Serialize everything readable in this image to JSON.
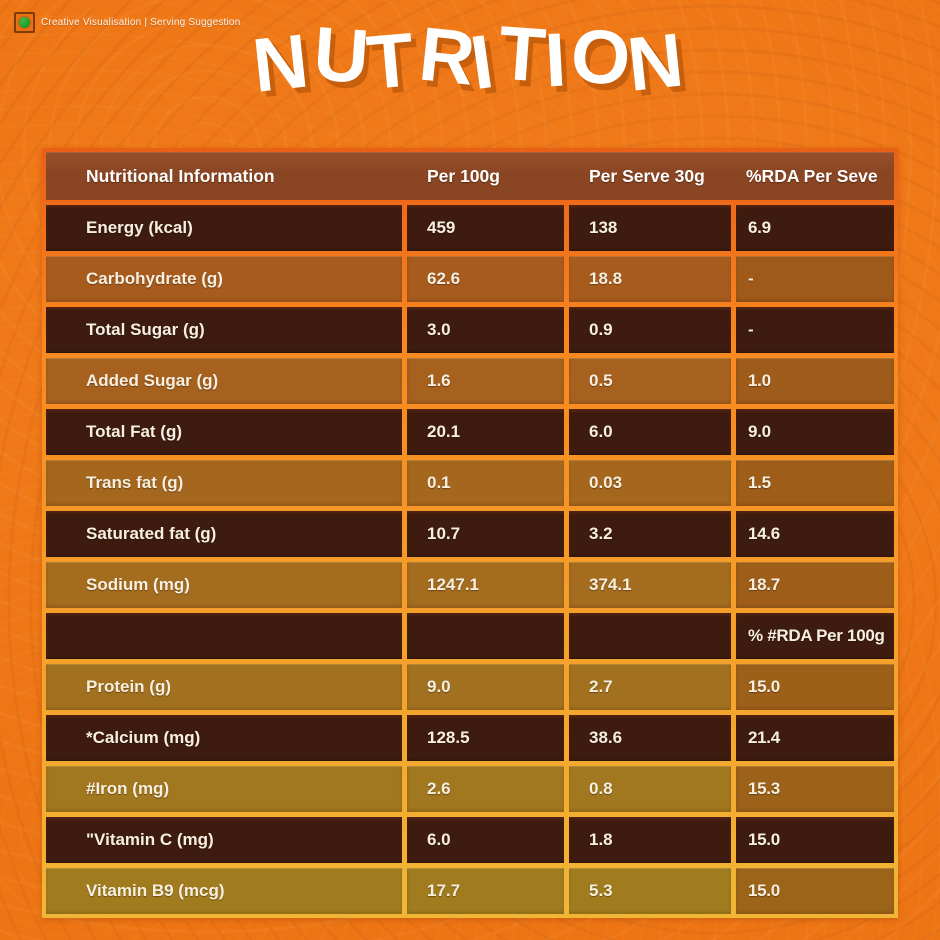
{
  "page": {
    "tagline": "Creative Visualisation | Serving Suggestion",
    "title": "NUTRITION"
  },
  "icons": {
    "veg_mark": "veg-symbol-green-dot-in-square"
  },
  "colors": {
    "background": "#ee7514",
    "grid_top": "#ea5f17",
    "grid_mid": "#f8881f",
    "grid_bottom": "#f2b636",
    "header_row": "#8a4522",
    "dark_row": "#3d1b0f",
    "light_row_top": "#a75c1e",
    "light_row_bottom": "#a07c1f",
    "light_row_last_col": "#9a5716",
    "cell_text": "#f7efe0",
    "header_text": "#ffffff",
    "title_color": "#ffffff",
    "tagline_text": "#ffffff",
    "veg_dot": "#1f9a2e"
  },
  "table": {
    "headers": [
      "Nutritional Information",
      "Per 100g",
      "Per Serve 30g",
      "%RDA Per Seve"
    ],
    "rows": [
      {
        "label": "Energy (kcal)",
        "per_100g": "459",
        "per_serve_30g": "138",
        "rda_per_serve": "6.9",
        "variant": "dark"
      },
      {
        "label": "Carbohydrate (g)",
        "per_100g": "62.6",
        "per_serve_30g": "18.8",
        "rda_per_serve": "-",
        "variant": "light"
      },
      {
        "label": "Total Sugar (g)",
        "per_100g": "3.0",
        "per_serve_30g": "0.9",
        "rda_per_serve": "-",
        "variant": "dark"
      },
      {
        "label": "Added Sugar (g)",
        "per_100g": "1.6",
        "per_serve_30g": "0.5",
        "rda_per_serve": "1.0",
        "variant": "light"
      },
      {
        "label": "Total Fat (g)",
        "per_100g": "20.1",
        "per_serve_30g": "6.0",
        "rda_per_serve": "9.0",
        "variant": "dark"
      },
      {
        "label": "Trans fat (g)",
        "per_100g": "0.1",
        "per_serve_30g": "0.03",
        "rda_per_serve": "1.5",
        "variant": "light"
      },
      {
        "label": "Saturated fat (g)",
        "per_100g": "10.7",
        "per_serve_30g": "3.2",
        "rda_per_serve": "14.6",
        "variant": "dark"
      },
      {
        "label": "Sodium (mg)",
        "per_100g": "1247.1",
        "per_serve_30g": "374.1",
        "rda_per_serve": "18.7",
        "variant": "light"
      },
      {
        "label": "",
        "per_100g": "",
        "per_serve_30g": "",
        "rda_per_serve": "% #RDA Per 100g",
        "variant": "dark"
      },
      {
        "label": "Protein (g)",
        "per_100g": "9.0",
        "per_serve_30g": "2.7",
        "rda_per_serve": "15.0",
        "variant": "light"
      },
      {
        "label": "*Calcium (mg)",
        "per_100g": "128.5",
        "per_serve_30g": "38.6",
        "rda_per_serve": "21.4",
        "variant": "dark"
      },
      {
        "label": "#Iron (mg)",
        "per_100g": "2.6",
        "per_serve_30g": "0.8",
        "rda_per_serve": "15.3",
        "variant": "light"
      },
      {
        "label": "\"Vitamin C (mg)",
        "per_100g": "6.0",
        "per_serve_30g": "1.8",
        "rda_per_serve": "15.0",
        "variant": "dark"
      },
      {
        "label": "Vitamin B9 (mcg)",
        "per_100g": "17.7",
        "per_serve_30g": "5.3",
        "rda_per_serve": "15.0",
        "variant": "light"
      }
    ]
  }
}
